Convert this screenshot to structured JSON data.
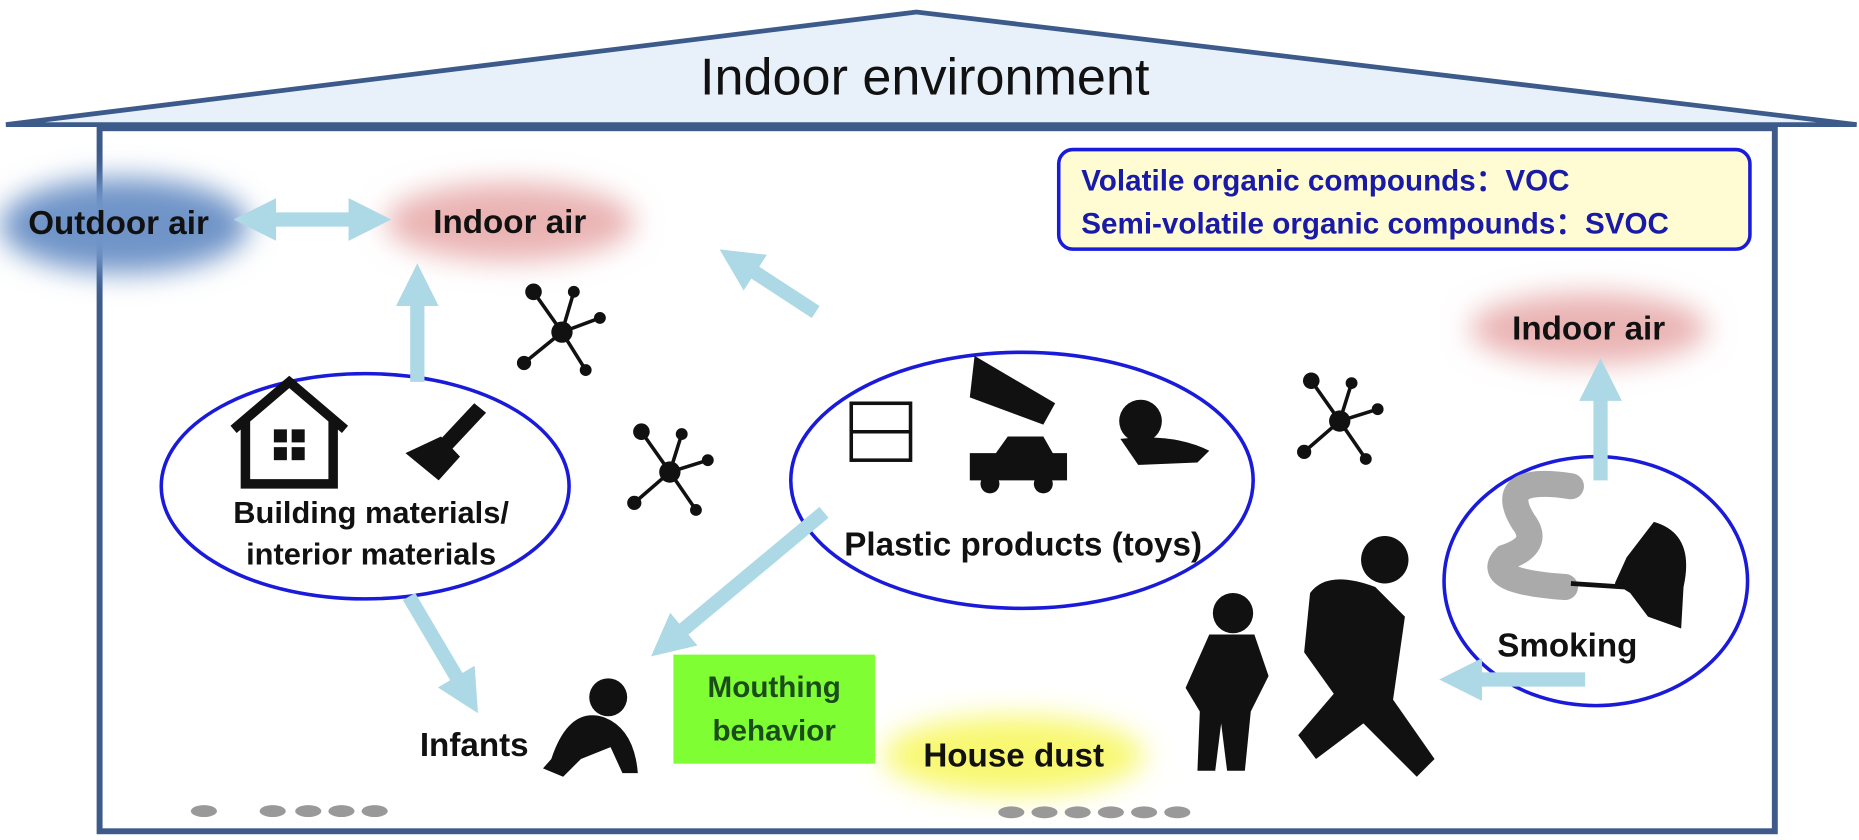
{
  "header": {
    "title": "Indoor environment"
  },
  "legend": {
    "lines": [
      "Volatile organic compounds：VOC",
      "Semi-volatile organic compounds：SVOC"
    ]
  },
  "nodes": [
    {
      "label": "Outdoor air"
    },
    {
      "label": "Indoor air"
    },
    {
      "label": "Indoor air"
    },
    {
      "label": "Building materials/"
    },
    {
      "label": "interior materials"
    },
    {
      "label": "Plastic products (toys)"
    },
    {
      "label": "Smoking"
    },
    {
      "label": "Infants"
    },
    {
      "label": "Mouthing"
    },
    {
      "label": "behavior"
    },
    {
      "label": "House dust"
    }
  ]
}
